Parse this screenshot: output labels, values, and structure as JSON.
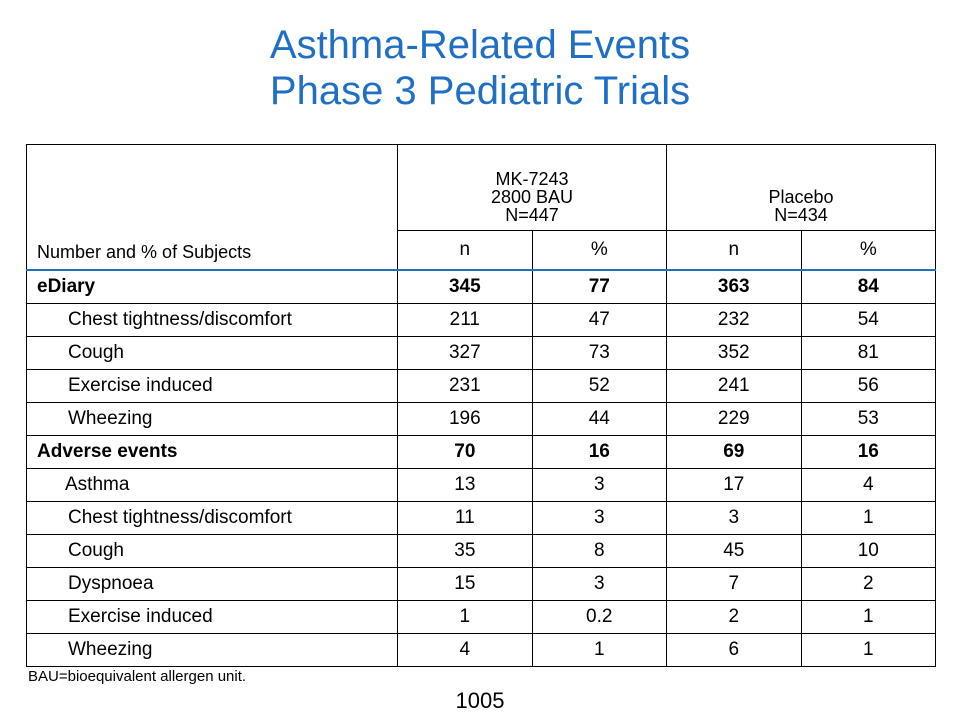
{
  "title": {
    "line1": "Asthma-Related Events",
    "line2": "Phase 3 Pediatric Trials"
  },
  "table": {
    "corner_label": "Number and % of Subjects",
    "group1": {
      "line1": "MK-7243",
      "line2": "2800 BAU",
      "line3": "N=447"
    },
    "group2": {
      "line1": "Placebo",
      "line2": "N=434"
    },
    "subheaders": [
      "n",
      "%",
      "n",
      "%"
    ],
    "rows": [
      {
        "label": "eDiary",
        "cells": [
          "345",
          "77",
          "363",
          "84"
        ]
      },
      {
        "label": "Chest tightness/discomfort",
        "cells": [
          "211",
          "47",
          "232",
          "54"
        ]
      },
      {
        "label": "Cough",
        "cells": [
          "327",
          "73",
          "352",
          "81"
        ]
      },
      {
        "label": "Exercise induced",
        "cells": [
          "231",
          "52",
          "241",
          "56"
        ]
      },
      {
        "label": "Wheezing",
        "cells": [
          "196",
          "44",
          "229",
          "53"
        ]
      },
      {
        "label": "Adverse events",
        "cells": [
          "70",
          "16",
          "69",
          "16"
        ]
      },
      {
        "label": "Asthma",
        "cells": [
          "13",
          "3",
          "17",
          "4"
        ]
      },
      {
        "label": "Chest tightness/discomfort",
        "cells": [
          "11",
          "3",
          "3",
          "1"
        ]
      },
      {
        "label": "Cough",
        "cells": [
          "35",
          "8",
          "45",
          "10"
        ]
      },
      {
        "label": "Dyspnoea",
        "cells": [
          "15",
          "3",
          "7",
          "2"
        ]
      },
      {
        "label": "Exercise induced",
        "cells": [
          "1",
          "0.2",
          "2",
          "1"
        ]
      },
      {
        "label": "Wheezing",
        "cells": [
          "4",
          "1",
          "6",
          "1"
        ]
      }
    ]
  },
  "footnote": "BAU=bioequivalent allergen unit.",
  "page_number": "1005"
}
